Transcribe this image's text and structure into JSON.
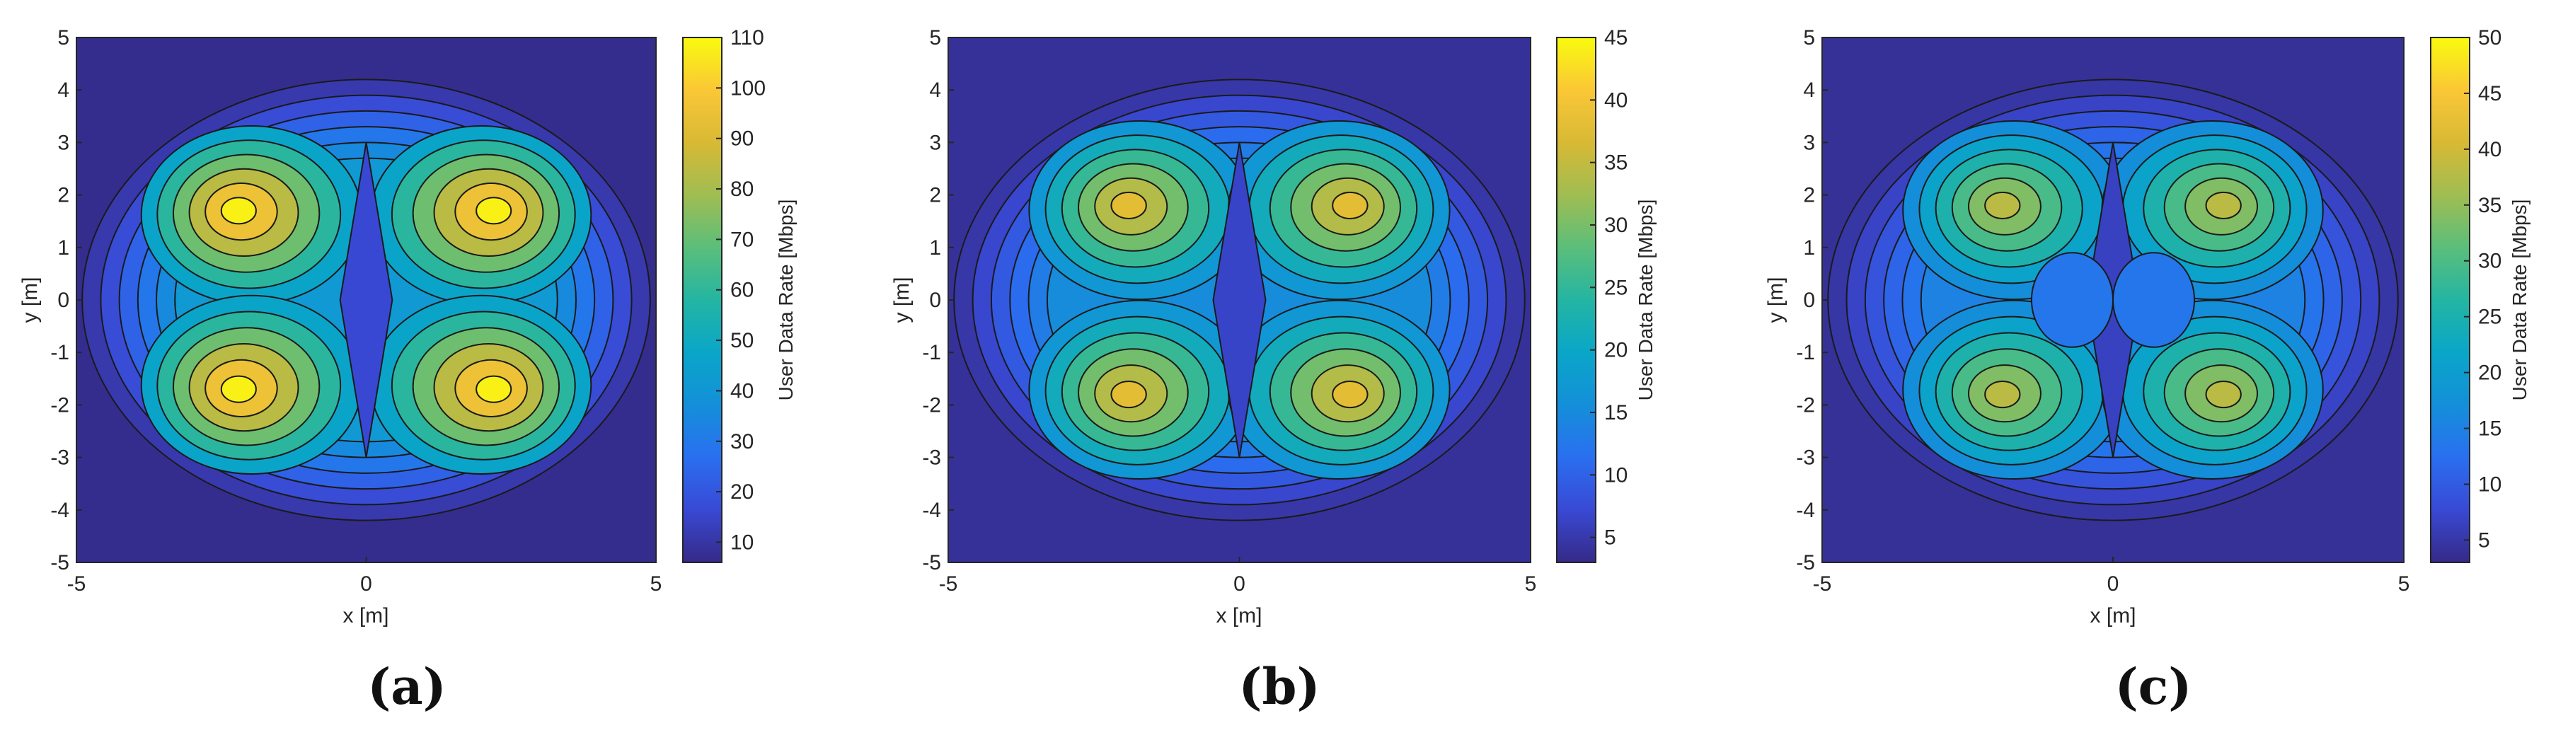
{
  "chart_data": [
    {
      "type": "contour",
      "panel_label": "(a)",
      "xlabel": "x [m]",
      "ylabel": "y [m]",
      "xlim": [
        -5,
        5
      ],
      "ylim": [
        -5,
        5
      ],
      "xticks": [
        -5,
        0,
        5
      ],
      "yticks": [
        -5,
        -4,
        -3,
        -2,
        -1,
        0,
        1,
        2,
        3,
        4,
        5
      ],
      "colorbar": {
        "label": "User Data Rate [Mbps]",
        "min": 6,
        "max": 110,
        "ticks": [
          10,
          20,
          30,
          40,
          50,
          60,
          70,
          80,
          90,
          100,
          110
        ]
      },
      "colormap": "parula",
      "pattern": "four-lobe",
      "peak_value": 108,
      "min_value": 6,
      "peaks": [
        [
          -2.2,
          1.7
        ],
        [
          2.2,
          1.7
        ],
        [
          -2.2,
          -1.7
        ],
        [
          2.2,
          -1.7
        ]
      ]
    },
    {
      "type": "contour",
      "panel_label": "(b)",
      "xlabel": "x [m]",
      "ylabel": "y [m]",
      "xlim": [
        -5,
        5
      ],
      "ylim": [
        -5,
        5
      ],
      "xticks": [
        -5,
        0,
        5
      ],
      "yticks": [
        -5,
        -4,
        -3,
        -2,
        -1,
        0,
        1,
        2,
        3,
        4,
        5
      ],
      "colorbar": {
        "label": "User Data Rate [Mbps]",
        "min": 3,
        "max": 45,
        "ticks": [
          5,
          10,
          15,
          20,
          25,
          30,
          35,
          40,
          45
        ]
      },
      "colormap": "parula",
      "pattern": "four-lobe",
      "peak_value": 38,
      "min_value": 3,
      "peaks": [
        [
          -1.9,
          1.8
        ],
        [
          1.9,
          1.8
        ],
        [
          -1.9,
          -1.8
        ],
        [
          1.9,
          -1.8
        ]
      ]
    },
    {
      "type": "contour",
      "panel_label": "(c)",
      "xlabel": "x [m]",
      "ylabel": "y [m]",
      "xlim": [
        -5,
        5
      ],
      "ylim": [
        -5,
        5
      ],
      "xticks": [
        -5,
        0,
        5
      ],
      "yticks": [
        -5,
        -4,
        -3,
        -2,
        -1,
        0,
        1,
        2,
        3,
        4,
        5
      ],
      "colorbar": {
        "label": "User Data Rate [Mbps]",
        "min": 3,
        "max": 50,
        "ticks": [
          5,
          10,
          15,
          20,
          25,
          30,
          35,
          40,
          45,
          50
        ]
      },
      "colormap": "parula",
      "pattern": "four-lobe with central blobs",
      "peak_value": 38,
      "min_value": 3,
      "peaks": [
        [
          -1.9,
          1.8
        ],
        [
          1.9,
          1.8
        ],
        [
          -1.9,
          -1.8
        ],
        [
          1.9,
          -1.8
        ]
      ],
      "central_blobs": [
        [
          -0.7,
          0
        ],
        [
          0.7,
          0
        ]
      ]
    }
  ]
}
